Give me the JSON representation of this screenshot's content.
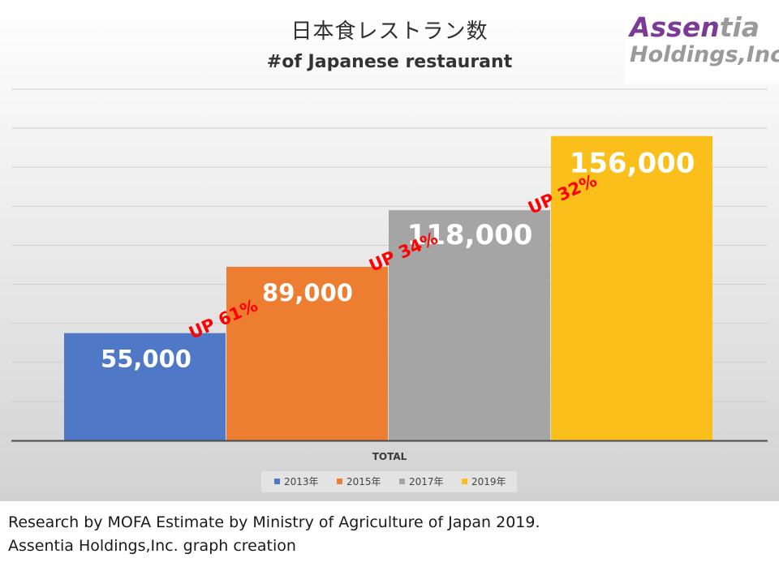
{
  "chart_data": {
    "type": "bar",
    "title": "日本食レストラン数",
    "subtitle": "#of Japanese restaurant",
    "xlabel": "TOTAL",
    "categories": [
      "TOTAL"
    ],
    "series": [
      {
        "name": "2013年",
        "values": [
          55000
        ],
        "label": "55,000",
        "color": "#4f79c6"
      },
      {
        "name": "2015年",
        "values": [
          89000
        ],
        "label": "89,000",
        "color": "#ed7d31"
      },
      {
        "name": "2017年",
        "values": [
          118000
        ],
        "label": "118,000",
        "color": "#a5a5a5"
      },
      {
        "name": "2019年",
        "values": [
          156000
        ],
        "label": "156,000",
        "color": "#fbbf1b"
      }
    ],
    "ylim": [
      0,
      180000
    ],
    "grid": true,
    "legend": "bottom",
    "annotations": [
      {
        "text": "UP 61%",
        "between": [
          "2013年",
          "2015年"
        ],
        "color": "#ff0000"
      },
      {
        "text": "UP 34%",
        "between": [
          "2015年",
          "2017年"
        ],
        "color": "#ff0000"
      },
      {
        "text": "UP 32%",
        "between": [
          "2017年",
          "2019年"
        ],
        "color": "#ff0000"
      }
    ]
  },
  "logo": {
    "line1_main": "Assen",
    "line1_accent": "tia",
    "line2": "Holdings,Inc."
  },
  "footer": {
    "source": "Research by MOFA Estimate by Ministry of Agriculture of Japan 2019.",
    "credit": "Assentia Holdings,Inc. graph creation"
  }
}
